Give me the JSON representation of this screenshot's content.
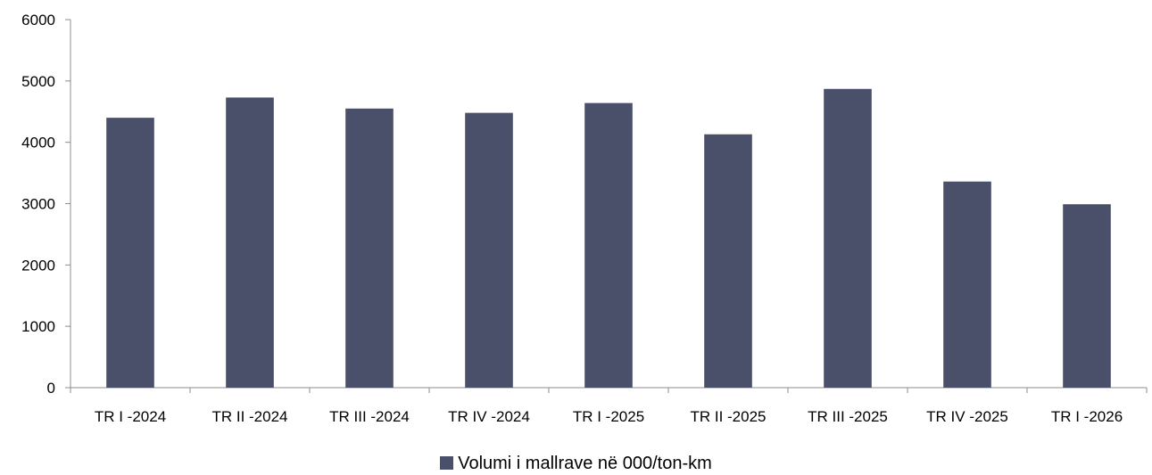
{
  "chart_data": {
    "type": "bar",
    "categories": [
      "TR I -2024",
      "TR II -2024",
      "TR III -2024",
      "TR IV -2024",
      "TR I -2025",
      "TR II -2025",
      "TR III -2025",
      "TR IV -2025",
      "TR I -2026"
    ],
    "series": [
      {
        "name": "Volumi i mallrave në 000/ton-km",
        "values": [
          4400,
          4730,
          4550,
          4480,
          4640,
          4130,
          4870,
          3360,
          2990
        ]
      }
    ],
    "ylim": [
      0,
      6000
    ],
    "yticks": [
      0,
      1000,
      2000,
      3000,
      4000,
      5000,
      6000
    ],
    "grid": false,
    "legend": "bottom-center",
    "colors": {
      "bar": "#4a5069",
      "axis": "#8c8c8c"
    }
  }
}
